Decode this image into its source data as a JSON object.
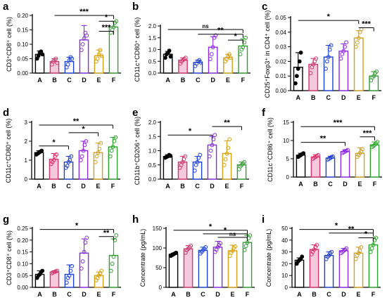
{
  "chart_data": [
    {
      "type": "bar",
      "panel": "a",
      "ylabel": "CD3⁺CD8⁺ cell (%)",
      "ylim": [
        0,
        0.2
      ],
      "yticks": [
        "0.00",
        "0.05",
        "0.10",
        "0.15",
        "0.20"
      ],
      "categories": [
        "A",
        "B",
        "C",
        "D",
        "E",
        "F"
      ],
      "values": [
        0.065,
        0.04,
        0.04,
        0.115,
        0.06,
        0.16
      ],
      "errors": [
        0.012,
        0.01,
        0.015,
        0.05,
        0.02,
        0.02
      ],
      "points": [
        [
          0.05,
          0.06,
          0.07,
          0.075,
          0.065
        ],
        [
          0.03,
          0.04,
          0.045,
          0.05,
          0.035
        ],
        [
          0.02,
          0.03,
          0.045,
          0.055,
          0.05
        ],
        [
          0.08,
          0.1,
          0.12,
          0.14,
          0.13
        ],
        [
          0.04,
          0.05,
          0.065,
          0.08,
          0.06
        ],
        [
          0.14,
          0.15,
          0.16,
          0.175,
          0.18
        ]
      ],
      "sig": [
        {
          "stars": "***",
          "from": 1,
          "to": 5,
          "y": 0.2
        },
        {
          "stars": "*",
          "from": 4,
          "to": 5,
          "y": 0.18
        },
        {
          "stars": "***",
          "from": 4,
          "to": 5,
          "y": 0.145
        }
      ]
    },
    {
      "type": "bar",
      "panel": "b",
      "ylabel": "CD11c⁺CD80⁺ cell (%)",
      "ylim": [
        0,
        2.0
      ],
      "yticks": [
        "0.0",
        "0.5",
        "1.0",
        "1.5",
        "2.0"
      ],
      "categories": [
        "A",
        "B",
        "C",
        "D",
        "E",
        "F"
      ],
      "values": [
        0.8,
        0.55,
        0.45,
        1.1,
        0.65,
        1.15
      ],
      "errors": [
        0.12,
        0.1,
        0.1,
        0.45,
        0.15,
        0.3
      ],
      "points": [
        [
          0.65,
          0.8,
          0.85,
          0.95,
          0.7
        ],
        [
          0.4,
          0.5,
          0.55,
          0.6,
          0.65
        ],
        [
          0.3,
          0.4,
          0.5,
          0.55,
          0.45
        ],
        [
          0.6,
          0.8,
          1.1,
          1.5,
          1.6
        ],
        [
          0.5,
          0.6,
          0.7,
          0.8,
          0.65
        ],
        [
          0.8,
          1.0,
          1.1,
          1.3,
          1.5
        ]
      ],
      "sig": [
        {
          "stars": "ns",
          "from": 0,
          "to": 5,
          "y": 1.85
        },
        {
          "stars": "**",
          "from": 2,
          "to": 5,
          "y": 1.65
        },
        {
          "stars": "*",
          "from": 4,
          "to": 5,
          "y": 1.4
        }
      ]
    },
    {
      "type": "bar",
      "panel": "c",
      "ylabel": "CD25⁺Foxp3⁺ in CD4⁺ cell (%)",
      "ylim": [
        0,
        0.05
      ],
      "yticks": [
        "0.00",
        "0.01",
        "0.02",
        "0.03",
        "0.04",
        "0.05"
      ],
      "categories": [
        "A",
        "B",
        "C",
        "D",
        "E",
        "F"
      ],
      "values": [
        0.016,
        0.018,
        0.023,
        0.027,
        0.036,
        0.01
      ],
      "errors": [
        0.01,
        0.004,
        0.008,
        0.005,
        0.005,
        0.003
      ],
      "points": [
        [
          0.005,
          0.01,
          0.015,
          0.02,
          0.026
        ],
        [
          0.012,
          0.016,
          0.018,
          0.02,
          0.022
        ],
        [
          0.015,
          0.02,
          0.023,
          0.028,
          0.031
        ],
        [
          0.022,
          0.025,
          0.027,
          0.03,
          0.033
        ],
        [
          0.03,
          0.033,
          0.036,
          0.04,
          0.042
        ],
        [
          0.007,
          0.009,
          0.01,
          0.012,
          0.013
        ]
      ],
      "sig": [
        {
          "stars": "*",
          "from": 0,
          "to": 4,
          "y": 0.048
        },
        {
          "stars": "***",
          "from": 4,
          "to": 5,
          "y": 0.043
        }
      ]
    },
    {
      "type": "bar",
      "panel": "d",
      "ylabel": "CD11c⁺CD80⁺ cell (%)",
      "ylim": [
        0,
        3
      ],
      "yticks": [
        "0",
        "1",
        "2",
        "3"
      ],
      "categories": [
        "A",
        "B",
        "C",
        "D",
        "E",
        "F"
      ],
      "values": [
        1.4,
        1.05,
        0.9,
        1.5,
        1.4,
        1.7
      ],
      "errors": [
        0.1,
        0.3,
        0.3,
        0.5,
        0.5,
        0.5
      ],
      "points": [
        [
          1.3,
          1.35,
          1.4,
          1.45,
          1.5
        ],
        [
          0.8,
          0.9,
          1.0,
          1.2,
          1.3
        ],
        [
          0.6,
          0.7,
          0.9,
          1.0,
          1.2
        ],
        [
          1.0,
          1.2,
          1.5,
          1.8,
          2.0
        ],
        [
          0.9,
          1.2,
          1.4,
          1.6,
          1.9
        ],
        [
          1.2,
          1.5,
          1.7,
          2.0,
          2.2
        ]
      ],
      "sig": [
        {
          "stars": "**",
          "from": 0,
          "to": 5,
          "y": 2.85
        },
        {
          "stars": "*",
          "from": 2,
          "to": 4,
          "y": 2.45
        },
        {
          "stars": "*",
          "from": 0,
          "to": 2,
          "y": 1.75
        }
      ]
    },
    {
      "type": "bar",
      "panel": "e",
      "ylabel": "CD11b⁺CD206⁺ cell (%)",
      "ylim": [
        0,
        2.0
      ],
      "yticks": [
        "0.0",
        "0.5",
        "1.0",
        "1.5",
        "2.0"
      ],
      "categories": [
        "A",
        "B",
        "C",
        "D",
        "E",
        "F"
      ],
      "values": [
        0.8,
        0.6,
        0.6,
        1.2,
        0.9,
        0.5
      ],
      "errors": [
        0.06,
        0.2,
        0.2,
        0.3,
        0.45,
        0.1
      ],
      "points": [
        [
          0.75,
          0.78,
          0.8,
          0.85,
          0.82
        ],
        [
          0.4,
          0.5,
          0.6,
          0.7,
          0.8
        ],
        [
          0.3,
          0.5,
          0.6,
          0.75,
          0.85
        ],
        [
          0.8,
          1.0,
          1.2,
          1.4,
          1.55
        ],
        [
          0.5,
          0.7,
          0.9,
          1.1,
          1.4
        ],
        [
          0.35,
          0.45,
          0.5,
          0.55,
          0.6
        ]
      ],
      "sig": [
        {
          "stars": "**",
          "from": 3,
          "to": 5,
          "y": 1.85
        },
        {
          "stars": "*",
          "from": 0,
          "to": 3,
          "y": 1.55
        }
      ]
    },
    {
      "type": "bar",
      "panel": "f",
      "ylabel": "CD11c⁺CD86⁺ cell (%)",
      "ylim": [
        0,
        15
      ],
      "yticks": [
        "0",
        "5",
        "10",
        "15"
      ],
      "categories": [
        "A",
        "B",
        "C",
        "D",
        "E",
        "F"
      ],
      "values": [
        6.0,
        5.5,
        5.2,
        7.0,
        6.5,
        8.8
      ],
      "errors": [
        0.5,
        0.6,
        0.5,
        0.5,
        1.5,
        0.8
      ],
      "points": [
        [
          5.5,
          5.8,
          6.0,
          6.3,
          6.5
        ],
        [
          5.0,
          5.3,
          5.5,
          5.8,
          6.0
        ],
        [
          4.8,
          5.0,
          5.2,
          5.5,
          5.6
        ],
        [
          6.6,
          6.8,
          7.0,
          7.2,
          7.4
        ],
        [
          5.5,
          6.0,
          6.5,
          7.0,
          7.6
        ],
        [
          8.2,
          8.5,
          8.8,
          9.2,
          9.6
        ]
      ],
      "sig": [
        {
          "stars": "***",
          "from": 0,
          "to": 5,
          "y": 13.8
        },
        {
          "stars": "***",
          "from": 4,
          "to": 5,
          "y": 11.0
        },
        {
          "stars": "**",
          "from": 0,
          "to": 3,
          "y": 9.5
        }
      ]
    },
    {
      "type": "bar",
      "panel": "g",
      "ylabel": "CD3⁺CD8⁺ cell (%)",
      "ylim": [
        0,
        0.25
      ],
      "yticks": [
        "0.00",
        "0.05",
        "0.10",
        "0.15",
        "0.20",
        "0.25"
      ],
      "categories": [
        "A",
        "B",
        "C",
        "D",
        "E",
        "F"
      ],
      "values": [
        0.055,
        0.065,
        0.055,
        0.145,
        0.05,
        0.135
      ],
      "errors": [
        0.015,
        0.005,
        0.04,
        0.06,
        0.015,
        0.07
      ],
      "points": [
        [
          0.04,
          0.05,
          0.055,
          0.065,
          0.07
        ],
        [
          0.06,
          0.063,
          0.065,
          0.068,
          0.07
        ],
        [
          0.02,
          0.04,
          0.05,
          0.07,
          0.09
        ],
        [
          0.08,
          0.11,
          0.15,
          0.19,
          0.21
        ],
        [
          0.03,
          0.04,
          0.05,
          0.06,
          0.07
        ],
        [
          0.07,
          0.1,
          0.13,
          0.2,
          0.22
        ]
      ],
      "sig": [
        {
          "stars": "*",
          "from": 0,
          "to": 5,
          "y": 0.245
        },
        {
          "stars": "**",
          "from": 4,
          "to": 5,
          "y": 0.215
        }
      ]
    },
    {
      "type": "bar",
      "panel": "h",
      "ylabel": "Concentrate (pg/mL)",
      "ylim": [
        0,
        150
      ],
      "yticks": [
        "0",
        "50",
        "100",
        "150"
      ],
      "categories": [
        "A",
        "B",
        "C",
        "D",
        "E",
        "F"
      ],
      "values": [
        84,
        98,
        94,
        102,
        93,
        114
      ],
      "errors": [
        3,
        8,
        8,
        15,
        14,
        18
      ],
      "points": [
        [
          80,
          82,
          84,
          86,
          88
        ],
        [
          88,
          95,
          98,
          102,
          106
        ],
        [
          86,
          90,
          94,
          98,
          102
        ],
        [
          90,
          96,
          102,
          108,
          112
        ],
        [
          80,
          88,
          93,
          100,
          104
        ],
        [
          95,
          105,
          114,
          125,
          132
        ]
      ],
      "sig": [
        {
          "stars": "*",
          "from": 0,
          "to": 5,
          "y": 145
        },
        {
          "stars": "*",
          "from": 2,
          "to": 5,
          "y": 136
        },
        {
          "stars": "ns",
          "from": 3,
          "to": 5,
          "y": 127
        }
      ]
    },
    {
      "type": "bar",
      "panel": "i",
      "ylabel": "Concentrate (pg/mL)",
      "ylim": [
        0,
        50
      ],
      "yticks": [
        "0",
        "10",
        "20",
        "30",
        "40",
        "50"
      ],
      "categories": [
        "A",
        "B",
        "C",
        "D",
        "E",
        "F"
      ],
      "values": [
        23,
        32,
        27,
        31,
        29,
        36
      ],
      "errors": [
        2,
        4,
        3,
        2,
        5,
        6
      ],
      "points": [
        [
          20,
          22,
          23,
          24,
          26
        ],
        [
          28,
          30,
          32,
          34,
          36
        ],
        [
          24,
          26,
          27,
          29,
          30
        ],
        [
          29,
          30,
          31,
          32,
          33
        ],
        [
          24,
          27,
          29,
          31,
          34
        ],
        [
          30,
          33,
          36,
          40,
          42
        ]
      ],
      "sig": [
        {
          "stars": "*",
          "from": 0,
          "to": 5,
          "y": 49
        },
        {
          "stars": "**",
          "from": 2,
          "to": 5,
          "y": 46
        },
        {
          "stars": "*",
          "from": 4,
          "to": 5,
          "y": 42
        }
      ]
    }
  ],
  "style": {
    "bar_colors": [
      "#000000",
      "#d6336c",
      "#1e3fd6",
      "#8a2be2",
      "#d4a017",
      "#2ca02c"
    ],
    "bar_fills": [
      "#ffffff",
      "#f4c9dc",
      "#ffffff",
      "#ffffff",
      "#ffffff",
      "#ffffff"
    ]
  }
}
